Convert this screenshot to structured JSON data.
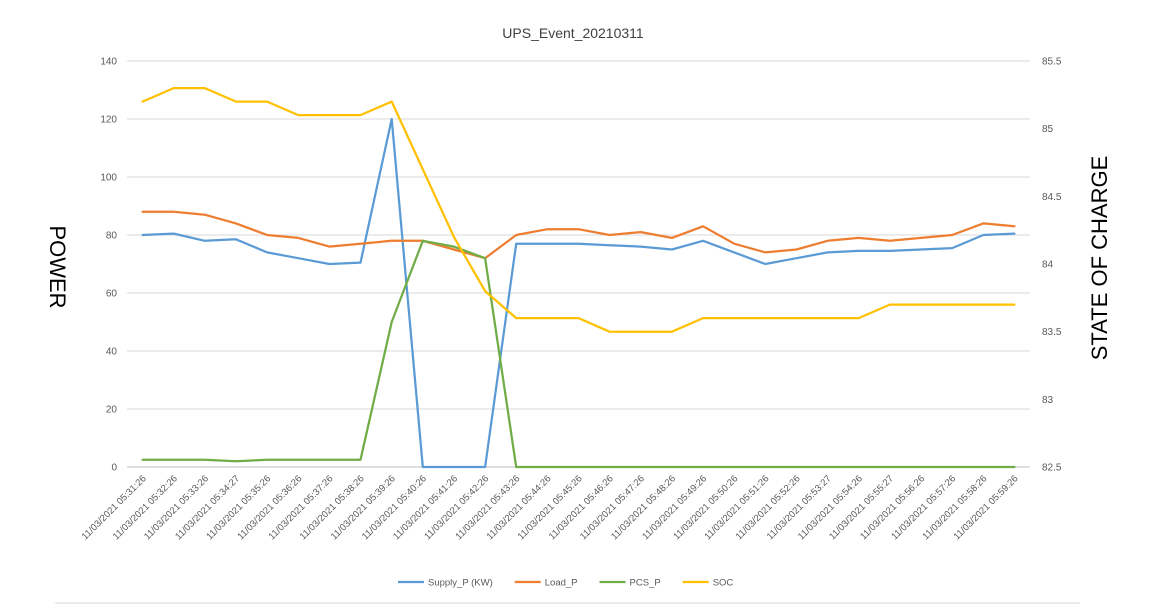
{
  "chart_data": {
    "type": "line",
    "title": "UPS_Event_20210311",
    "ylabel": "POWER",
    "y2label": "STATE OF CHARGE",
    "ylim": [
      0,
      140
    ],
    "y2lim": [
      82.5,
      85.5
    ],
    "yticks": [
      0,
      20,
      40,
      60,
      80,
      100,
      120,
      140
    ],
    "y2ticks": [
      "82.5",
      "83",
      "83.5",
      "84",
      "84.5",
      "85",
      "85.5"
    ],
    "grid": true,
    "legend_position": "bottom",
    "x": [
      "11/03/2021 05:31:26",
      "11/03/2021 05:32:26",
      "11/03/2021 05:33:26",
      "11/03/2021 05:34:27",
      "11/03/2021 05:35:26",
      "11/03/2021 05:36:26",
      "11/03/2021 05:37:26",
      "11/03/2021 05:38:26",
      "11/03/2021 05:39:26",
      "11/03/2021 05:40:26",
      "11/03/2021 05:41:26",
      "11/03/2021 05:42:26",
      "11/03/2021 05:43:26",
      "11/03/2021 05:44:26",
      "11/03/2021 05:45:26",
      "11/03/2021 05:46:26",
      "11/03/2021 05:47:26",
      "11/03/2021 05:48:26",
      "11/03/2021 05:49:26",
      "11/03/2021 05:50:26",
      "11/03/2021 05:51:26",
      "11/03/2021 05:52:26",
      "11/03/2021 05:53:27",
      "11/03/2021 05:54:26",
      "11/03/2021 05:55:27",
      "11/03/2021 05:56:26",
      "11/03/2021 05:57:26",
      "11/03/2021 05:58:26",
      "11/03/2021 05:59:26"
    ],
    "series": [
      {
        "name": "Supply_P (KW)",
        "axis": "left",
        "color": "#5b9bd5",
        "values": [
          80,
          80.5,
          78,
          78.5,
          74,
          72,
          70,
          70.5,
          120,
          0,
          0,
          0,
          77,
          77,
          77,
          76.5,
          76,
          75,
          78,
          74,
          70,
          72,
          74,
          74.5,
          74.5,
          75,
          75.5,
          80,
          80.5
        ]
      },
      {
        "name": "Load_P",
        "axis": "left",
        "color": "#ed7d31",
        "values": [
          88,
          88,
          87,
          84,
          80,
          79,
          76,
          77,
          78,
          78,
          75,
          72,
          80,
          82,
          82,
          80,
          81,
          79,
          83,
          77,
          74,
          75,
          78,
          79,
          78,
          79,
          80,
          84,
          83
        ]
      },
      {
        "name": "PCS_P",
        "axis": "left",
        "color": "#70ad47",
        "values": [
          2.5,
          2.5,
          2.5,
          2,
          2.5,
          2.5,
          2.5,
          2.5,
          50,
          78,
          76,
          72,
          0,
          0,
          0,
          0,
          0,
          0,
          0,
          0,
          0,
          0,
          0,
          0,
          0,
          0,
          0,
          0,
          0
        ]
      },
      {
        "name": "SOC",
        "axis": "right",
        "color": "#ffc000",
        "values": [
          85.2,
          85.3,
          85.3,
          85.2,
          85.2,
          85.1,
          85.1,
          85.1,
          85.2,
          84.7,
          84.2,
          83.8,
          83.6,
          83.6,
          83.6,
          83.5,
          83.5,
          83.5,
          83.6,
          83.6,
          83.6,
          83.6,
          83.6,
          83.6,
          83.7,
          83.7,
          83.7,
          83.7,
          83.7
        ]
      }
    ]
  }
}
